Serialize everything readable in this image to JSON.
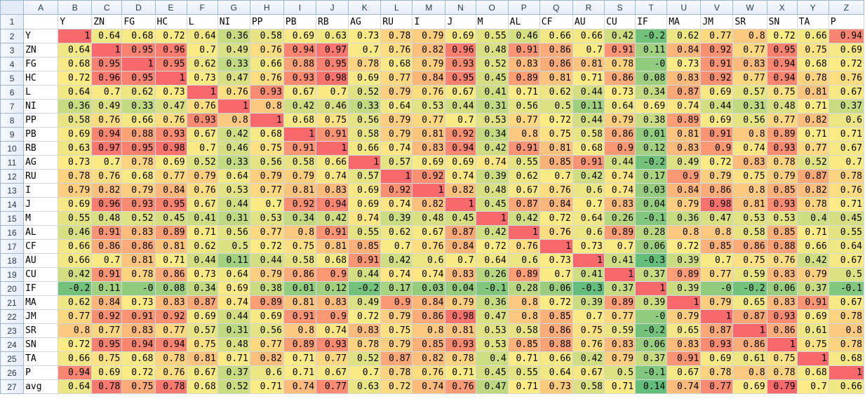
{
  "columns": [
    "A",
    "B",
    "C",
    "D",
    "E",
    "F",
    "G",
    "H",
    "I",
    "J",
    "K",
    "L",
    "M",
    "N",
    "O",
    "P",
    "Q",
    "R",
    "S",
    "T",
    "U",
    "V",
    "W",
    "X",
    "Y",
    "Z"
  ],
  "header_labels": [
    "Y",
    "ZN",
    "FG",
    "HC",
    "L",
    "NI",
    "PP",
    "PB",
    "RB",
    "AG",
    "RU",
    "I",
    "J",
    "M",
    "AL",
    "CF",
    "AU",
    "CU",
    "IF",
    "MA",
    "JM",
    "SR",
    "SN",
    "TA",
    "P"
  ],
  "rows": [
    {
      "label": "Y",
      "values": [
        "1",
        "0.64",
        "0.68",
        "0.72",
        "0.64",
        "0.36",
        "0.58",
        "0.69",
        "0.63",
        "0.73",
        "0.78",
        "0.79",
        "0.69",
        "0.55",
        "0.46",
        "0.66",
        "0.66",
        "0.42",
        "-0.2",
        "0.62",
        "0.77",
        "0.8",
        "0.72",
        "0.66",
        "0.94"
      ]
    },
    {
      "label": "ZN",
      "values": [
        "0.64",
        "1",
        "0.95",
        "0.96",
        "0.7",
        "0.49",
        "0.76",
        "0.94",
        "0.97",
        "0.7",
        "0.76",
        "0.82",
        "0.96",
        "0.48",
        "0.91",
        "0.86",
        "0.7",
        "0.91",
        "0.11",
        "0.84",
        "0.92",
        "0.77",
        "0.95",
        "0.75",
        "0.69"
      ]
    },
    {
      "label": "FG",
      "values": [
        "0.68",
        "0.95",
        "1",
        "0.95",
        "0.62",
        "0.33",
        "0.66",
        "0.88",
        "0.95",
        "0.78",
        "0.68",
        "0.79",
        "0.93",
        "0.52",
        "0.83",
        "0.86",
        "0.81",
        "0.78",
        "-0",
        "0.73",
        "0.91",
        "0.83",
        "0.94",
        "0.68",
        "0.72"
      ]
    },
    {
      "label": "HC",
      "values": [
        "0.72",
        "0.96",
        "0.95",
        "1",
        "0.73",
        "0.47",
        "0.76",
        "0.93",
        "0.98",
        "0.69",
        "0.77",
        "0.84",
        "0.95",
        "0.45",
        "0.89",
        "0.81",
        "0.71",
        "0.86",
        "0.08",
        "0.83",
        "0.92",
        "0.77",
        "0.94",
        "0.78",
        "0.76"
      ]
    },
    {
      "label": "L",
      "values": [
        "0.64",
        "0.7",
        "0.62",
        "0.73",
        "1",
        "0.76",
        "0.93",
        "0.67",
        "0.7",
        "0.52",
        "0.79",
        "0.76",
        "0.67",
        "0.41",
        "0.71",
        "0.62",
        "0.44",
        "0.73",
        "0.34",
        "0.87",
        "0.69",
        "0.57",
        "0.75",
        "0.81",
        "0.67"
      ]
    },
    {
      "label": "NI",
      "values": [
        "0.36",
        "0.49",
        "0.33",
        "0.47",
        "0.76",
        "1",
        "0.8",
        "0.42",
        "0.46",
        "0.33",
        "0.64",
        "0.53",
        "0.44",
        "0.31",
        "0.56",
        "0.5",
        "0.11",
        "0.64",
        "0.69",
        "0.74",
        "0.44",
        "0.31",
        "0.48",
        "0.71",
        "0.37"
      ]
    },
    {
      "label": "PP",
      "values": [
        "0.58",
        "0.76",
        "0.66",
        "0.76",
        "0.93",
        "0.8",
        "1",
        "0.68",
        "0.75",
        "0.56",
        "0.79",
        "0.77",
        "0.7",
        "0.53",
        "0.77",
        "0.72",
        "0.44",
        "0.79",
        "0.38",
        "0.89",
        "0.69",
        "0.56",
        "0.77",
        "0.82",
        "0.6"
      ]
    },
    {
      "label": "PB",
      "values": [
        "0.69",
        "0.94",
        "0.88",
        "0.93",
        "0.67",
        "0.42",
        "0.68",
        "1",
        "0.91",
        "0.58",
        "0.79",
        "0.81",
        "0.92",
        "0.34",
        "0.8",
        "0.75",
        "0.58",
        "0.86",
        "0.01",
        "0.81",
        "0.91",
        "0.8",
        "0.89",
        "0.71",
        "0.71"
      ]
    },
    {
      "label": "RB",
      "values": [
        "0.63",
        "0.97",
        "0.95",
        "0.98",
        "0.7",
        "0.46",
        "0.75",
        "0.91",
        "1",
        "0.66",
        "0.74",
        "0.83",
        "0.94",
        "0.42",
        "0.91",
        "0.81",
        "0.68",
        "0.9",
        "0.12",
        "0.83",
        "0.9",
        "0.74",
        "0.93",
        "0.77",
        "0.67"
      ]
    },
    {
      "label": "AG",
      "values": [
        "0.73",
        "0.7",
        "0.78",
        "0.69",
        "0.52",
        "0.33",
        "0.56",
        "0.58",
        "0.66",
        "1",
        "0.57",
        "0.69",
        "0.69",
        "0.74",
        "0.55",
        "0.85",
        "0.91",
        "0.44",
        "-0.2",
        "0.49",
        "0.72",
        "0.83",
        "0.78",
        "0.52",
        "0.7"
      ]
    },
    {
      "label": "RU",
      "values": [
        "0.78",
        "0.76",
        "0.68",
        "0.77",
        "0.79",
        "0.64",
        "0.79",
        "0.79",
        "0.74",
        "0.57",
        "1",
        "0.92",
        "0.74",
        "0.39",
        "0.62",
        "0.7",
        "0.42",
        "0.74",
        "0.17",
        "0.9",
        "0.79",
        "0.75",
        "0.79",
        "0.87",
        "0.78"
      ]
    },
    {
      "label": "I",
      "values": [
        "0.79",
        "0.82",
        "0.79",
        "0.84",
        "0.76",
        "0.53",
        "0.77",
        "0.81",
        "0.83",
        "0.69",
        "0.92",
        "1",
        "0.82",
        "0.48",
        "0.67",
        "0.76",
        "0.6",
        "0.74",
        "0.03",
        "0.84",
        "0.86",
        "0.8",
        "0.85",
        "0.82",
        "0.76"
      ]
    },
    {
      "label": "J",
      "values": [
        "0.69",
        "0.96",
        "0.93",
        "0.95",
        "0.67",
        "0.44",
        "0.7",
        "0.92",
        "0.94",
        "0.69",
        "0.74",
        "0.82",
        "1",
        "0.45",
        "0.87",
        "0.84",
        "0.7",
        "0.83",
        "0.04",
        "0.79",
        "0.98",
        "0.81",
        "0.93",
        "0.78",
        "0.71"
      ]
    },
    {
      "label": "M",
      "values": [
        "0.55",
        "0.48",
        "0.52",
        "0.45",
        "0.41",
        "0.31",
        "0.53",
        "0.34",
        "0.42",
        "0.74",
        "0.39",
        "0.48",
        "0.45",
        "1",
        "0.42",
        "0.72",
        "0.64",
        "0.26",
        "-0.1",
        "0.36",
        "0.47",
        "0.53",
        "0.53",
        "0.4",
        "0.45"
      ]
    },
    {
      "label": "AL",
      "values": [
        "0.46",
        "0.91",
        "0.83",
        "0.89",
        "0.71",
        "0.56",
        "0.77",
        "0.8",
        "0.91",
        "0.55",
        "0.62",
        "0.67",
        "0.87",
        "0.42",
        "1",
        "0.76",
        "0.6",
        "0.89",
        "0.28",
        "0.8",
        "0.8",
        "0.58",
        "0.85",
        "0.71",
        "0.55"
      ]
    },
    {
      "label": "CF",
      "values": [
        "0.66",
        "0.86",
        "0.86",
        "0.81",
        "0.62",
        "0.5",
        "0.72",
        "0.75",
        "0.81",
        "0.85",
        "0.7",
        "0.76",
        "0.84",
        "0.72",
        "0.76",
        "1",
        "0.73",
        "0.7",
        "0.06",
        "0.72",
        "0.85",
        "0.86",
        "0.88",
        "0.66",
        "0.64"
      ]
    },
    {
      "label": "AU",
      "values": [
        "0.66",
        "0.7",
        "0.81",
        "0.71",
        "0.44",
        "0.11",
        "0.44",
        "0.58",
        "0.68",
        "0.91",
        "0.42",
        "0.6",
        "0.7",
        "0.64",
        "0.6",
        "0.73",
        "1",
        "0.41",
        "-0.3",
        "0.39",
        "0.7",
        "0.75",
        "0.76",
        "0.42",
        "0.67"
      ]
    },
    {
      "label": "CU",
      "values": [
        "0.42",
        "0.91",
        "0.78",
        "0.86",
        "0.73",
        "0.64",
        "0.79",
        "0.86",
        "0.9",
        "0.44",
        "0.74",
        "0.74",
        "0.83",
        "0.26",
        "0.89",
        "0.7",
        "0.41",
        "1",
        "0.37",
        "0.89",
        "0.77",
        "0.59",
        "0.83",
        "0.79",
        "0.5"
      ]
    },
    {
      "label": "IF",
      "values": [
        "-0.2",
        "0.11",
        "-0",
        "0.08",
        "0.34",
        "0.69",
        "0.38",
        "0.01",
        "0.12",
        "-0.2",
        "0.17",
        "0.03",
        "0.04",
        "-0.1",
        "0.28",
        "0.06",
        "-0.3",
        "0.37",
        "1",
        "0.39",
        "-0",
        "-0.2",
        "0.06",
        "0.37",
        "-0.1"
      ]
    },
    {
      "label": "MA",
      "values": [
        "0.62",
        "0.84",
        "0.73",
        "0.83",
        "0.87",
        "0.74",
        "0.89",
        "0.81",
        "0.83",
        "0.49",
        "0.9",
        "0.84",
        "0.79",
        "0.36",
        "0.8",
        "0.72",
        "0.39",
        "0.89",
        "0.39",
        "1",
        "0.79",
        "0.65",
        "0.83",
        "0.91",
        "0.67"
      ]
    },
    {
      "label": "JM",
      "values": [
        "0.77",
        "0.92",
        "0.91",
        "0.92",
        "0.69",
        "0.44",
        "0.69",
        "0.91",
        "0.9",
        "0.72",
        "0.79",
        "0.86",
        "0.98",
        "0.47",
        "0.8",
        "0.85",
        "0.7",
        "0.77",
        "-0",
        "0.79",
        "1",
        "0.87",
        "0.93",
        "0.69",
        "0.78"
      ]
    },
    {
      "label": "SR",
      "values": [
        "0.8",
        "0.77",
        "0.83",
        "0.77",
        "0.57",
        "0.31",
        "0.56",
        "0.8",
        "0.74",
        "0.83",
        "0.75",
        "0.8",
        "0.81",
        "0.53",
        "0.58",
        "0.86",
        "0.75",
        "0.59",
        "-0.2",
        "0.65",
        "0.87",
        "1",
        "0.86",
        "0.61",
        "0.8"
      ]
    },
    {
      "label": "SN",
      "values": [
        "0.72",
        "0.95",
        "0.94",
        "0.94",
        "0.75",
        "0.48",
        "0.77",
        "0.89",
        "0.93",
        "0.78",
        "0.79",
        "0.85",
        "0.93",
        "0.53",
        "0.85",
        "0.88",
        "0.76",
        "0.83",
        "0.06",
        "0.83",
        "0.93",
        "0.86",
        "1",
        "0.75",
        "0.78"
      ]
    },
    {
      "label": "TA",
      "values": [
        "0.66",
        "0.75",
        "0.68",
        "0.78",
        "0.81",
        "0.71",
        "0.82",
        "0.71",
        "0.77",
        "0.52",
        "0.87",
        "0.82",
        "0.78",
        "0.4",
        "0.71",
        "0.66",
        "0.42",
        "0.79",
        "0.37",
        "0.91",
        "0.69",
        "0.61",
        "0.75",
        "1",
        "0.68"
      ]
    },
    {
      "label": "P",
      "values": [
        "0.94",
        "0.69",
        "0.72",
        "0.76",
        "0.67",
        "0.37",
        "0.6",
        "0.71",
        "0.67",
        "0.7",
        "0.78",
        "0.76",
        "0.71",
        "0.45",
        "0.55",
        "0.64",
        "0.67",
        "0.5",
        "-0.1",
        "0.67",
        "0.78",
        "0.8",
        "0.78",
        "0.68",
        "1"
      ]
    }
  ],
  "avg": {
    "label": "avg",
    "values": [
      "0.64",
      "0.78",
      "0.75",
      "0.78",
      "0.68",
      "0.52",
      "0.71",
      "0.74",
      "0.77",
      "0.63",
      "0.72",
      "0.74",
      "0.76",
      "0.47",
      "0.71",
      "0.73",
      "0.58",
      "0.71",
      "0.14",
      "0.74",
      "0.77",
      "0.69",
      "0.79",
      "0.7",
      "0.66"
    ]
  },
  "colors": {
    "scale_low": "#63be7b",
    "scale_mid": "#ffeb84",
    "scale_high": "#f8696b",
    "gridline": "#d0d7e5"
  }
}
